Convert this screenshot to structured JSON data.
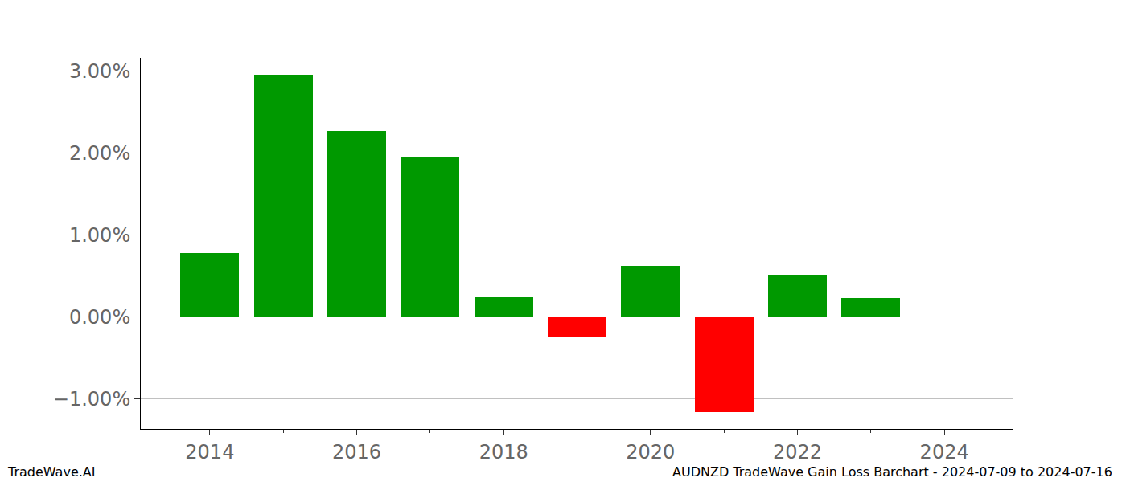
{
  "chart_data": {
    "type": "bar",
    "x": [
      2014,
      2015,
      2016,
      2017,
      2018,
      2019,
      2020,
      2021,
      2022,
      2023,
      2024
    ],
    "values": [
      0.78,
      2.95,
      2.27,
      1.94,
      0.24,
      -0.25,
      0.62,
      -1.16,
      0.51,
      0.23,
      0
    ],
    "colors": [
      "#009900",
      "#009900",
      "#009900",
      "#009900",
      "#009900",
      "#ff0000",
      "#009900",
      "#ff0000",
      "#009900",
      "#009900",
      "#009900"
    ],
    "xlim": [
      2013.06,
      2024.94
    ],
    "xticks": [
      2014,
      2016,
      2018,
      2020,
      2022,
      2024
    ],
    "ylim": [
      -1.37,
      3.16
    ],
    "yticks": [
      {
        "value": -1,
        "label": "−1.00%"
      },
      {
        "value": 0,
        "label": "0.00%"
      },
      {
        "value": 1,
        "label": "1.00%"
      },
      {
        "value": 2,
        "label": "2.00%"
      },
      {
        "value": 3,
        "label": "3.00%"
      }
    ],
    "grid": true,
    "annotations": [
      "TradeWave.AI",
      "AUDNZD TradeWave Gain Loss Barchart - 2024-07-09 to 2024-07-16"
    ]
  }
}
